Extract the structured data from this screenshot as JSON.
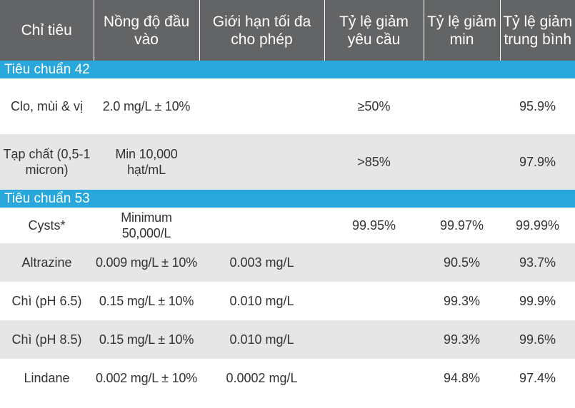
{
  "headers": [
    "Chỉ tiêu",
    "Nồng độ đầu vào",
    "Giới hạn tối đa cho phép",
    "Tỷ lệ giảm yêu cầu",
    "Tỷ lệ giảm min",
    "Tỷ lệ giảm trung bình"
  ],
  "section1": {
    "title": "Tiêu chuẩn 42",
    "rows": [
      {
        "name": "Clo, mùi & vị",
        "input": "2.0 mg/L ± 10%",
        "max": "",
        "required": "≥50%",
        "min": "",
        "avg": "95.9%"
      },
      {
        "name": "Tạp chất (0,5-1 micron)",
        "input": "Min 10,000 hạt/mL",
        "max": "",
        "required": ">85%",
        "min": "",
        "avg": "97.9%"
      }
    ]
  },
  "section2": {
    "title": "Tiêu chuẩn 53",
    "rows": [
      {
        "name": "Cysts*",
        "input": "Minimum 50,000/L",
        "max": "",
        "required": "99.95%",
        "min": "99.97%",
        "avg": "99.99%"
      },
      {
        "name": "Altrazine",
        "input": "0.009 mg/L ± 10%",
        "max": "0.003 mg/L",
        "required": "",
        "min": "90.5%",
        "avg": "93.7%"
      },
      {
        "name": "Chì (pH 6.5)",
        "input": "0.15 mg/L ± 10%",
        "max": "0.010 mg/L",
        "required": "",
        "min": "99.3%",
        "avg": "99.9%"
      },
      {
        "name": "Chì (pH 8.5)",
        "input": "0.15 mg/L ± 10%",
        "max": "0.010 mg/L",
        "required": "",
        "min": "99.3%",
        "avg": "99.6%"
      },
      {
        "name": "Lindane",
        "input": "0.002 mg/L ± 10%",
        "max": "0.0002 mg/L",
        "required": "",
        "min": "94.8%",
        "avg": "97.4%"
      }
    ]
  },
  "colors": {
    "header_bg": "#636466",
    "section_bg": "#27a7dc",
    "shade_bg": "#e6e6e7"
  }
}
